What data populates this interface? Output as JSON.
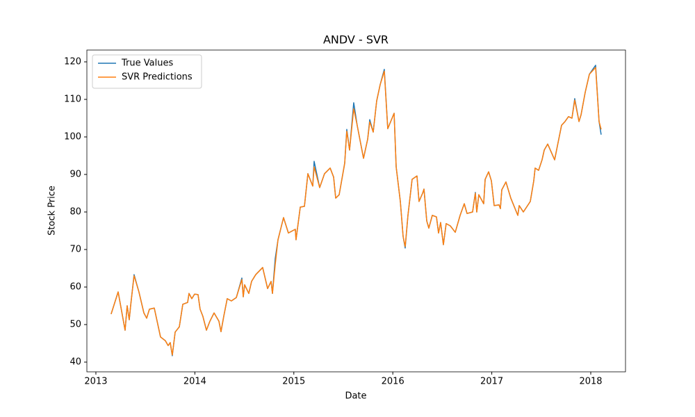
{
  "chart_data": {
    "type": "line",
    "title": "ANDV - SVR",
    "xlabel": "Date",
    "ylabel": "Stock Price",
    "x": [
      2013.154,
      2013.225,
      2013.295,
      2013.316,
      2013.337,
      2013.351,
      2013.386,
      2013.435,
      2013.485,
      2013.513,
      2013.541,
      2013.59,
      2013.653,
      2013.702,
      2013.73,
      2013.751,
      2013.772,
      2013.801,
      2013.843,
      2013.878,
      2013.927,
      2013.941,
      2013.969,
      2013.997,
      2014.032,
      2014.053,
      2014.081,
      2014.117,
      2014.152,
      2014.194,
      2014.243,
      2014.264,
      2014.292,
      2014.327,
      2014.369,
      2014.419,
      2014.475,
      2014.489,
      2014.503,
      2014.545,
      2014.573,
      2014.615,
      2014.685,
      2014.735,
      2014.77,
      2014.784,
      2014.812,
      2014.84,
      2014.896,
      2014.945,
      2015.015,
      2015.022,
      2015.065,
      2015.107,
      2015.142,
      2015.191,
      2015.205,
      2015.261,
      2015.31,
      2015.367,
      2015.402,
      2015.423,
      2015.458,
      2015.514,
      2015.535,
      2015.563,
      2015.605,
      2015.64,
      2015.704,
      2015.746,
      2015.767,
      2015.802,
      2015.837,
      2015.872,
      2015.914,
      2015.949,
      2016.013,
      2016.034,
      2016.076,
      2016.104,
      2016.125,
      2016.153,
      2016.195,
      2016.244,
      2016.265,
      2016.301,
      2016.315,
      2016.343,
      2016.364,
      2016.399,
      2016.441,
      2016.462,
      2016.483,
      2016.511,
      2016.539,
      2016.581,
      2016.631,
      2016.68,
      2016.722,
      2016.75,
      2016.806,
      2016.834,
      2016.848,
      2016.869,
      2016.918,
      2016.933,
      2016.968,
      2016.996,
      2017.024,
      2017.073,
      2017.087,
      2017.101,
      2017.143,
      2017.192,
      2017.263,
      2017.277,
      2017.319,
      2017.389,
      2017.424,
      2017.438,
      2017.473,
      2017.508,
      2017.53,
      2017.565,
      2017.635,
      2017.663,
      2017.705,
      2017.74,
      2017.775,
      2017.81,
      2017.838,
      2017.881,
      2017.902,
      2017.944,
      2017.986,
      2018.049,
      2018.084,
      2018.105
    ],
    "series": [
      {
        "name": "True Values",
        "color": "#1f77b4",
        "values": [
          52.8,
          58.7,
          48.5,
          55.0,
          51.3,
          55.0,
          63.3,
          58.7,
          53.1,
          51.7,
          54.1,
          54.4,
          46.7,
          45.7,
          44.4,
          45.2,
          41.7,
          48.0,
          49.4,
          55.4,
          55.9,
          58.3,
          56.9,
          58.1,
          58.0,
          54.1,
          52.2,
          48.5,
          50.9,
          53.1,
          50.9,
          48.1,
          52.2,
          56.9,
          56.3,
          57.2,
          62.4,
          57.4,
          60.6,
          58.3,
          61.5,
          63.3,
          65.2,
          59.6,
          61.5,
          58.3,
          67.6,
          72.6,
          78.5,
          74.4,
          75.4,
          72.6,
          81.3,
          81.5,
          90.2,
          86.9,
          93.5,
          86.5,
          90.2,
          91.7,
          89.3,
          83.7,
          84.6,
          93.0,
          102.0,
          96.5,
          109.1,
          103.1,
          94.3,
          99.4,
          104.6,
          101.3,
          109.6,
          113.9,
          118.0,
          102.2,
          106.3,
          92.0,
          82.8,
          73.5,
          70.4,
          79.1,
          88.7,
          89.6,
          82.8,
          85.0,
          86.1,
          77.6,
          75.7,
          79.1,
          78.7,
          74.4,
          77.2,
          71.3,
          76.9,
          76.3,
          74.6,
          79.1,
          82.2,
          79.6,
          80.0,
          85.2,
          80.0,
          84.6,
          82.2,
          88.7,
          90.7,
          88.3,
          81.7,
          81.9,
          80.9,
          85.9,
          88.0,
          83.7,
          79.1,
          81.7,
          80.0,
          82.8,
          88.3,
          91.7,
          91.1,
          93.9,
          96.5,
          98.1,
          93.9,
          97.6,
          103.1,
          104.1,
          105.4,
          105.0,
          110.2,
          104.1,
          105.9,
          111.9,
          116.7,
          119.1,
          104.1,
          100.6
        ]
      },
      {
        "name": "SVR Predictions",
        "color": "#ff7f0e",
        "values": [
          52.8,
          58.7,
          48.5,
          55.0,
          51.3,
          55.0,
          63.0,
          58.7,
          53.1,
          51.7,
          54.1,
          54.4,
          46.7,
          45.7,
          44.4,
          45.2,
          41.9,
          48.0,
          49.4,
          55.4,
          55.9,
          58.3,
          56.9,
          58.1,
          58.0,
          54.1,
          52.2,
          48.5,
          50.9,
          53.1,
          50.9,
          48.1,
          52.2,
          56.9,
          56.3,
          57.2,
          62.0,
          57.4,
          60.6,
          58.3,
          61.5,
          63.3,
          65.2,
          59.6,
          61.5,
          58.3,
          66.0,
          72.6,
          78.5,
          74.4,
          75.4,
          72.6,
          81.3,
          81.5,
          90.2,
          86.9,
          92.0,
          86.5,
          90.2,
          91.7,
          89.3,
          83.7,
          84.6,
          93.0,
          101.5,
          96.5,
          107.5,
          103.1,
          94.3,
          99.4,
          104.0,
          101.3,
          109.6,
          113.9,
          117.5,
          102.2,
          106.3,
          92.0,
          82.8,
          73.5,
          70.8,
          79.1,
          88.7,
          89.6,
          82.8,
          85.0,
          86.1,
          77.6,
          75.7,
          79.1,
          78.7,
          74.4,
          77.2,
          71.3,
          76.9,
          76.3,
          74.6,
          79.1,
          82.2,
          79.6,
          80.0,
          85.0,
          80.0,
          84.6,
          82.2,
          88.7,
          90.7,
          88.3,
          81.7,
          81.9,
          80.9,
          85.9,
          88.0,
          83.7,
          79.1,
          81.7,
          80.0,
          82.8,
          88.3,
          91.7,
          91.1,
          93.9,
          96.5,
          98.1,
          93.9,
          97.6,
          103.1,
          104.1,
          105.4,
          105.0,
          109.8,
          104.1,
          105.9,
          111.9,
          116.7,
          118.5,
          104.1,
          102.0
        ]
      }
    ],
    "xlim": [
      2012.909,
      2018.351
    ],
    "xticks": [
      2013,
      2014,
      2015,
      2016,
      2017,
      2018
    ],
    "ylim": [
      37.41,
      123.15
    ],
    "yticks": [
      40,
      50,
      60,
      70,
      80,
      90,
      100,
      110,
      120
    ],
    "grid": false,
    "legend": "upper left"
  }
}
